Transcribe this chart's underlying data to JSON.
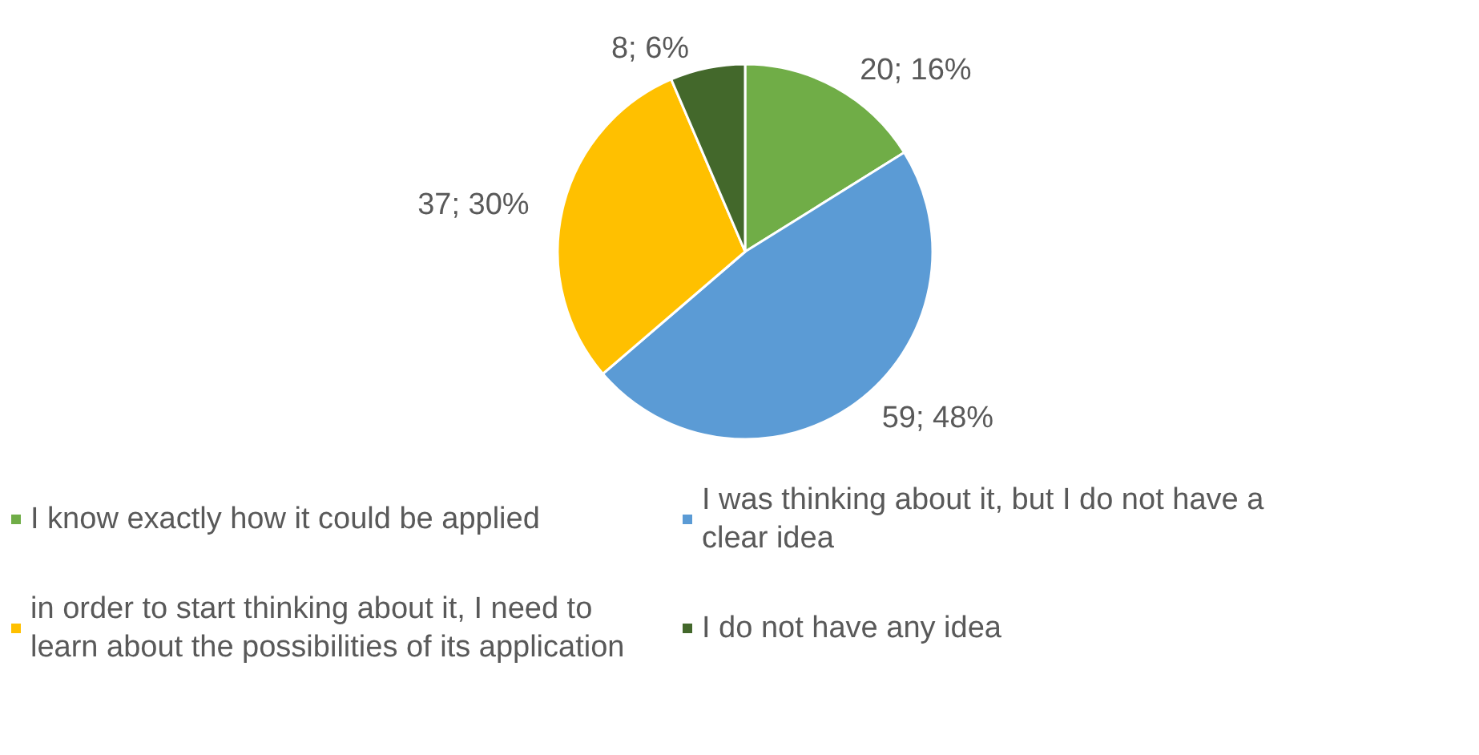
{
  "chart_data": {
    "type": "pie",
    "categories": [
      "I know exactly how it could be applied",
      "I was thinking about it, but I do not have a clear idea",
      "in order to start thinking about it, I need to learn about the possibilities of its application",
      "I do not have any idea"
    ],
    "values": [
      20,
      59,
      37,
      8
    ],
    "value_labels": [
      "20; 16%",
      "59; 48%",
      "37; 30%",
      "8; 6%"
    ],
    "colors": [
      "#70ad47",
      "#5b9bd5",
      "#ffc000",
      "#43682b"
    ],
    "legend": "bottom"
  }
}
